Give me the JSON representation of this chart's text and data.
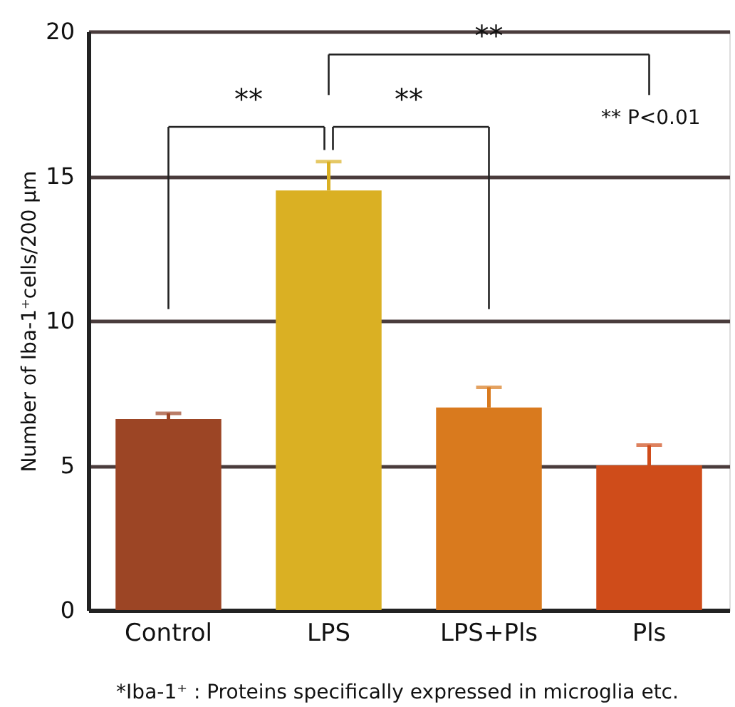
{
  "chart_data": {
    "type": "bar",
    "ylabel": "Number of Iba-1⁺cells/200 µm",
    "categories": [
      "Control",
      "LPS",
      "LPS+Pls",
      "Pls"
    ],
    "values": [
      6.6,
      14.5,
      7.0,
      5.0
    ],
    "colors": [
      "#9c4525",
      "#dab023",
      "#d97a1e",
      "#cf4c1a"
    ],
    "errors": [
      [
        6.6,
        6.8
      ],
      [
        14.5,
        15.5
      ],
      [
        7.0,
        7.7
      ],
      [
        5.0,
        5.7
      ]
    ],
    "ylim": [
      0,
      20
    ],
    "yticks": [
      0,
      5,
      10,
      15,
      20
    ],
    "grid": "y",
    "annotations": [
      "**",
      "**",
      "**",
      "** P<0.01",
      "*Iba-1⁺ : Proteins specifically expressed in microglia etc."
    ]
  }
}
